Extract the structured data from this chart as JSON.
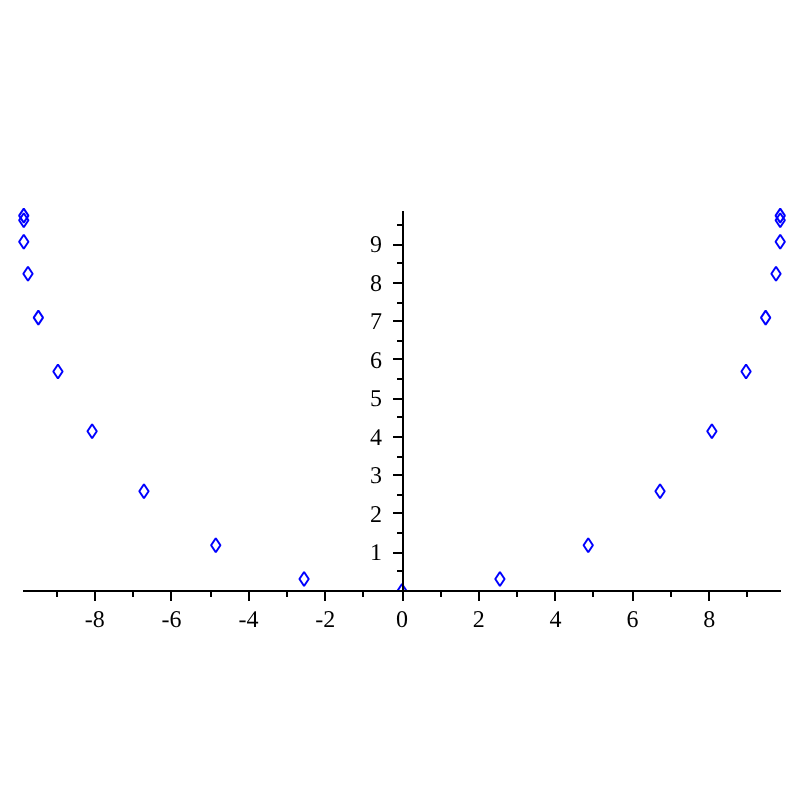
{
  "chart_data": {
    "type": "scatter",
    "x": [
      -9.85,
      -9.85,
      -9.85,
      -9.74,
      -9.47,
      -8.96,
      -8.07,
      -6.72,
      -4.85,
      -2.55,
      0,
      2.55,
      4.85,
      6.72,
      8.07,
      8.96,
      9.47,
      9.74,
      9.85,
      9.85,
      9.85
    ],
    "series": [
      {
        "color": "#0000ff",
        "values": [
          9.75,
          9.63,
          9.07,
          8.24,
          7.1,
          5.7,
          4.15,
          2.59,
          1.19,
          0.31,
          0,
          0.31,
          1.19,
          2.59,
          4.15,
          5.7,
          7.1,
          8.24,
          9.07,
          9.63,
          9.75
        ]
      }
    ],
    "xlim": [
      -9.87,
      9.87
    ],
    "ylim": [
      0,
      9.87
    ],
    "xticks": [
      {
        "value": -9,
        "label": null
      },
      -8,
      {
        "value": -7,
        "label": null
      },
      -6,
      {
        "value": -5,
        "label": null
      },
      -4,
      {
        "value": -3,
        "label": null
      },
      -2,
      {
        "value": -1,
        "label": null
      },
      0,
      {
        "value": 1,
        "label": null
      },
      2,
      {
        "value": 3,
        "label": null
      },
      4,
      {
        "value": 5,
        "label": null
      },
      6,
      {
        "value": 7,
        "label": null
      },
      8,
      {
        "value": 9,
        "label": null
      }
    ],
    "yticks": [
      {
        "value": 0.5,
        "label": null
      },
      1,
      {
        "value": 1.5,
        "label": null
      },
      2,
      {
        "value": 2.5,
        "label": null
      },
      3,
      {
        "value": 3.5,
        "label": null
      },
      4,
      {
        "value": 4.5,
        "label": null
      },
      5,
      {
        "value": 5.5,
        "label": null
      },
      6,
      {
        "value": 6.5,
        "label": null
      },
      7,
      {
        "value": 7.5,
        "label": null
      },
      8,
      {
        "value": 8.5,
        "label": null
      },
      9,
      {
        "value": 9.5,
        "label": null
      }
    ],
    "marker": "diamond",
    "grid": false
  }
}
